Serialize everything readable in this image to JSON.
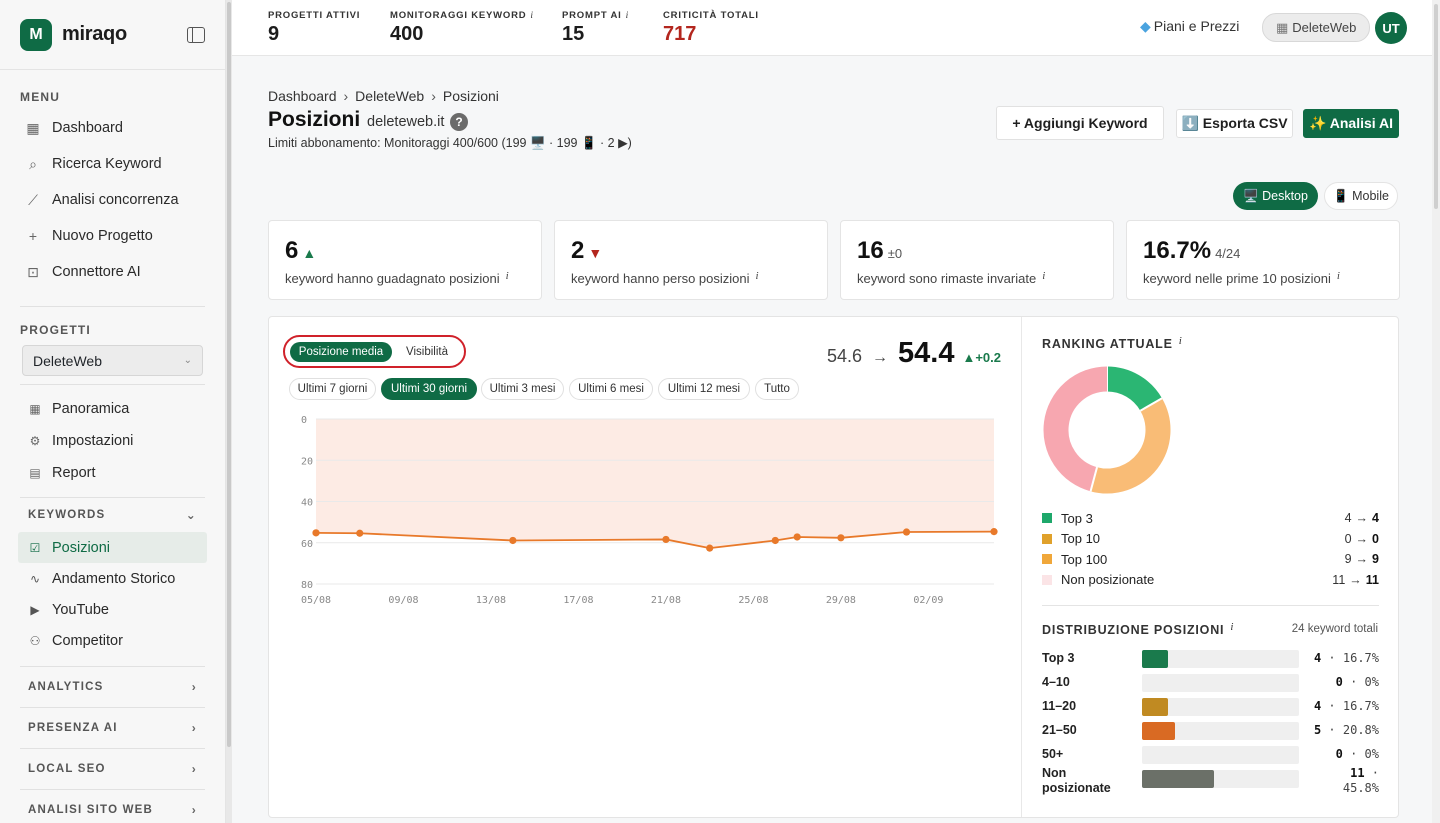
{
  "app": {
    "name": "miraqo",
    "logo_letter": "M"
  },
  "sidebar": {
    "menu_label": "MENU",
    "menu": [
      {
        "icon": "grid-icon",
        "glyph": "▦",
        "label": "Dashboard"
      },
      {
        "icon": "search-icon",
        "glyph": "⌕",
        "label": "Ricerca Keyword"
      },
      {
        "icon": "chart-line-icon",
        "glyph": "⟋",
        "label": "Analisi concorrenza"
      },
      {
        "icon": "plus-icon",
        "glyph": "+",
        "label": "Nuovo Progetto"
      },
      {
        "icon": "robot-icon",
        "glyph": "⊡",
        "label": "Connettore AI"
      }
    ],
    "projects_label": "PROGETTI",
    "project_selected": "DeleteWeb",
    "project_items": [
      {
        "icon": "grid-icon",
        "glyph": "▦",
        "label": "Panoramica"
      },
      {
        "icon": "gear-icon",
        "glyph": "⚙",
        "label": "Impostazioni"
      },
      {
        "icon": "document-icon",
        "glyph": "▤",
        "label": "Report"
      }
    ],
    "keywords_label": "KEYWORDS",
    "keyword_items": [
      {
        "icon": "check-square-icon",
        "glyph": "☑",
        "label": "Posizioni",
        "active": true
      },
      {
        "icon": "activity-icon",
        "glyph": "∿",
        "label": "Andamento Storico"
      },
      {
        "icon": "youtube-icon",
        "glyph": "▶",
        "label": "YouTube"
      },
      {
        "icon": "users-icon",
        "glyph": "⚇",
        "label": "Competitor"
      }
    ],
    "groups": [
      "ANALYTICS",
      "PRESENZA AI",
      "LOCAL SEO",
      "ANALISI SITO WEB"
    ]
  },
  "topbar": {
    "stats": [
      {
        "label": "PROGETTI ATTIVI",
        "value": "9",
        "info": false
      },
      {
        "label": "MONITORAGGI KEYWORD",
        "value": "400",
        "info": true
      },
      {
        "label": "PROMPT AI",
        "value": "15",
        "info": true
      },
      {
        "label": "CRITICITÀ TOTALI",
        "value": "717",
        "info": false
      }
    ],
    "plans_label": "Piani e Prezzi",
    "workspace": "DeleteWeb",
    "avatar": "UT",
    "info_glyph": "i"
  },
  "header": {
    "breadcrumb": [
      "Dashboard",
      "DeleteWeb",
      "Posizioni"
    ],
    "title": "Posizioni",
    "domain": "deleteweb.it",
    "help": "?",
    "limits": "Limiti abbonamento: Monitoraggi 400/600 (199 🖥️ · 199 📱 · 2 ▶)",
    "buttons": {
      "add": "+ Aggiungi Keyword",
      "export": "⬇️ Esporta CSV",
      "ai": "✨ Analisi AI"
    },
    "device": {
      "desktop": "🖥️ Desktop",
      "mobile": "📱 Mobile",
      "selected": "desktop"
    }
  },
  "kpis": [
    {
      "value": "6",
      "suffix": "▲",
      "suffix_type": "up",
      "desc": "keyword hanno guadagnato posizioni"
    },
    {
      "value": "2",
      "suffix": "▼",
      "suffix_type": "down",
      "desc": "keyword hanno perso posizioni"
    },
    {
      "value": "16",
      "suffix": "±0",
      "suffix_type": "sub",
      "desc": "keyword sono rimaste invariate"
    },
    {
      "value": "16.7%",
      "suffix": "4/24",
      "suffix_type": "sub",
      "desc": "keyword nelle prime 10 posizioni"
    }
  ],
  "panel": {
    "mode": {
      "options": [
        "Posizione media",
        "Visibilità"
      ],
      "selected": "Posizione media"
    },
    "ranges": [
      "Ultimi 7 giorni",
      "Ultimi 30 giorni",
      "Ultimi 3 mesi",
      "Ultimi 6 mesi",
      "Ultimi 12 mesi",
      "Tutto"
    ],
    "range_selected": "Ultimi 30 giorni",
    "position": {
      "from": "54.6",
      "arrow": "→",
      "to": "54.4",
      "delta": "▲+0.2"
    }
  },
  "chart_data": {
    "type": "line",
    "title": "",
    "xlabel": "",
    "ylabel": "",
    "y_reversed": true,
    "ylim": [
      0,
      80
    ],
    "yticks": [
      0,
      20,
      40,
      60,
      80
    ],
    "xticks": [
      "05/08",
      "09/08",
      "13/08",
      "17/08",
      "21/08",
      "25/08",
      "29/08",
      "02/09"
    ],
    "x_range_days": [
      0,
      31
    ],
    "series": [
      {
        "x_days": [
          0,
          2,
          9,
          16,
          18,
          21,
          22,
          24,
          27,
          31
        ],
        "values": [
          55.2,
          55.4,
          58.9,
          58.4,
          62.6,
          58.9,
          57.2,
          57.6,
          54.8,
          54.6
        ]
      }
    ],
    "colors": {
      "line": "#e8792a",
      "area": "#fdebe4",
      "grid": "#e9e9e9"
    }
  },
  "ranking": {
    "title": "RANKING ATTUALE",
    "chart_data": {
      "type": "pie",
      "categories": [
        "Top 3",
        "Top 10",
        "Top 100",
        "Non posizionate"
      ],
      "values": [
        4,
        0,
        9,
        11
      ],
      "colors": [
        "#2bb673",
        "#e8a33d",
        "#f9bc76",
        "#f7a7b0"
      ]
    },
    "legend": [
      {
        "label": "Top 3",
        "from": "4",
        "to": "4",
        "color": "#1ea86b"
      },
      {
        "label": "Top 10",
        "from": "0",
        "to": "0",
        "color": "#e0a12b"
      },
      {
        "label": "Top 100",
        "from": "9",
        "to": "9",
        "color": "#f0a73a"
      },
      {
        "label": "Non posizionate",
        "from": "11",
        "to": "11",
        "color": "#fbe4e6"
      }
    ]
  },
  "distribution": {
    "title": "DISTRIBUZIONE POSIZIONI",
    "total": "24 keyword totali",
    "rows": [
      {
        "label": "Top 3",
        "count": "4",
        "pct": "16.7%",
        "fraction": 0.167,
        "color": "#1a7a4c"
      },
      {
        "label": "4–10",
        "count": "0",
        "pct": "0%",
        "fraction": 0,
        "color": "#1a7a4c"
      },
      {
        "label": "11–20",
        "count": "4",
        "pct": "16.7%",
        "fraction": 0.167,
        "color": "#c08a22"
      },
      {
        "label": "21–50",
        "count": "5",
        "pct": "20.8%",
        "fraction": 0.208,
        "color": "#d96a23"
      },
      {
        "label": "50+",
        "count": "0",
        "pct": "0%",
        "fraction": 0,
        "color": "#b33"
      },
      {
        "label": "Non posizionate",
        "count": "11",
        "pct": "45.8%",
        "fraction": 0.458,
        "color": "#6b7068"
      }
    ]
  }
}
